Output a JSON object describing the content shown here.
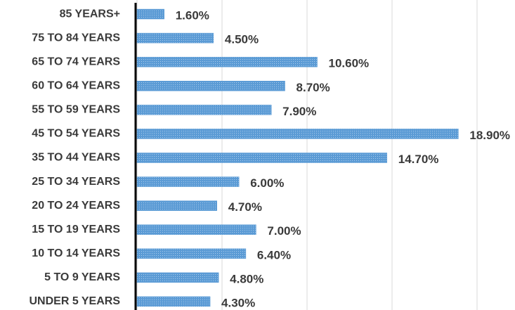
{
  "chart_data": {
    "type": "bar",
    "orientation": "horizontal",
    "categories": [
      "85 YEARS+",
      "75 TO 84 YEARS",
      "65 TO 74 YEARS",
      "60 TO 64 YEARS",
      "55 TO 59 YEARS",
      "45 TO 54 YEARS",
      "35 TO 44 YEARS",
      "25 TO 34 YEARS",
      "20 TO 24 YEARS",
      "15 TO 19 YEARS",
      "10 TO 14 YEARS",
      "5 TO 9 YEARS",
      "UNDER 5 YEARS"
    ],
    "values": [
      1.6,
      4.5,
      10.6,
      8.7,
      7.9,
      18.9,
      14.7,
      6.0,
      4.7,
      7.0,
      6.4,
      4.8,
      4.3
    ],
    "value_labels": [
      "1.60%",
      "4.50%",
      "10.60%",
      "8.70%",
      "7.90%",
      "18.90%",
      "14.70%",
      "6.00%",
      "4.70%",
      "7.00%",
      "6.40%",
      "4.80%",
      "4.30%"
    ],
    "color": "#5b9bd5",
    "xlim": [
      0,
      20
    ],
    "xticks": [
      0,
      5,
      10,
      15,
      20
    ],
    "grid": true
  }
}
